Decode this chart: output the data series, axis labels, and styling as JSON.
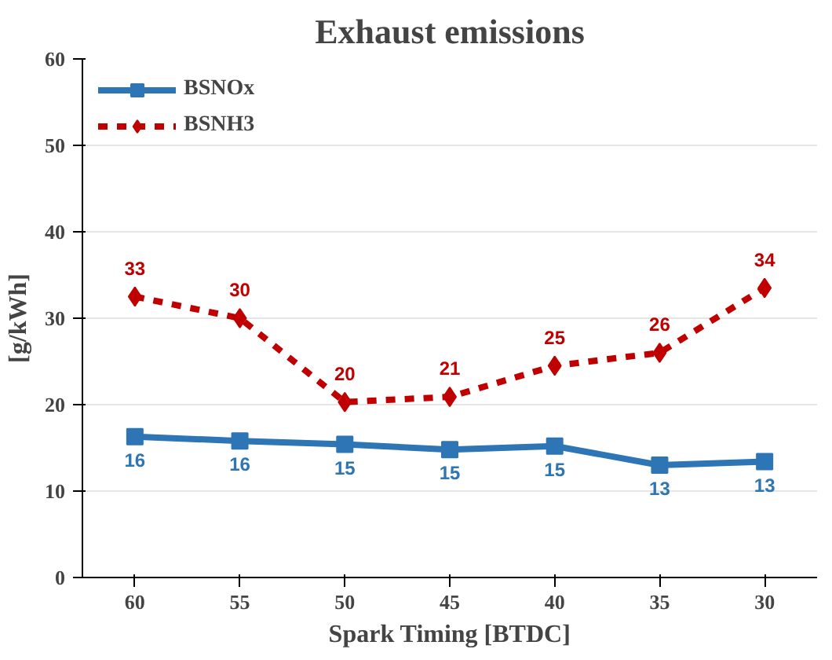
{
  "chart_data": {
    "type": "line",
    "title": "Exhaust emissions",
    "xlabel": "Spark Timing [BTDC]",
    "ylabel": "[g/kWh]",
    "categories": [
      "60",
      "55",
      "50",
      "45",
      "40",
      "35",
      "30"
    ],
    "series": [
      {
        "name": "BSNOx",
        "color": "#2e75b6",
        "marker": "square",
        "line_style": "solid",
        "values": [
          16.3,
          15.8,
          15.4,
          14.8,
          15.2,
          13.0,
          13.4
        ],
        "value_labels": [
          "16",
          "16",
          "15",
          "15",
          "15",
          "13",
          "13"
        ]
      },
      {
        "name": "BSNH3",
        "color": "#c00000",
        "marker": "diamond",
        "line_style": "dashed",
        "values": [
          32.5,
          30.0,
          20.3,
          20.9,
          24.5,
          26.0,
          33.5
        ],
        "value_labels": [
          "33",
          "30",
          "20",
          "21",
          "25",
          "26",
          "34"
        ]
      }
    ],
    "ylim": [
      0,
      60
    ],
    "yticks": [
      0,
      10,
      20,
      30,
      40,
      50,
      60
    ],
    "grid": "y",
    "legend": "top left"
  }
}
